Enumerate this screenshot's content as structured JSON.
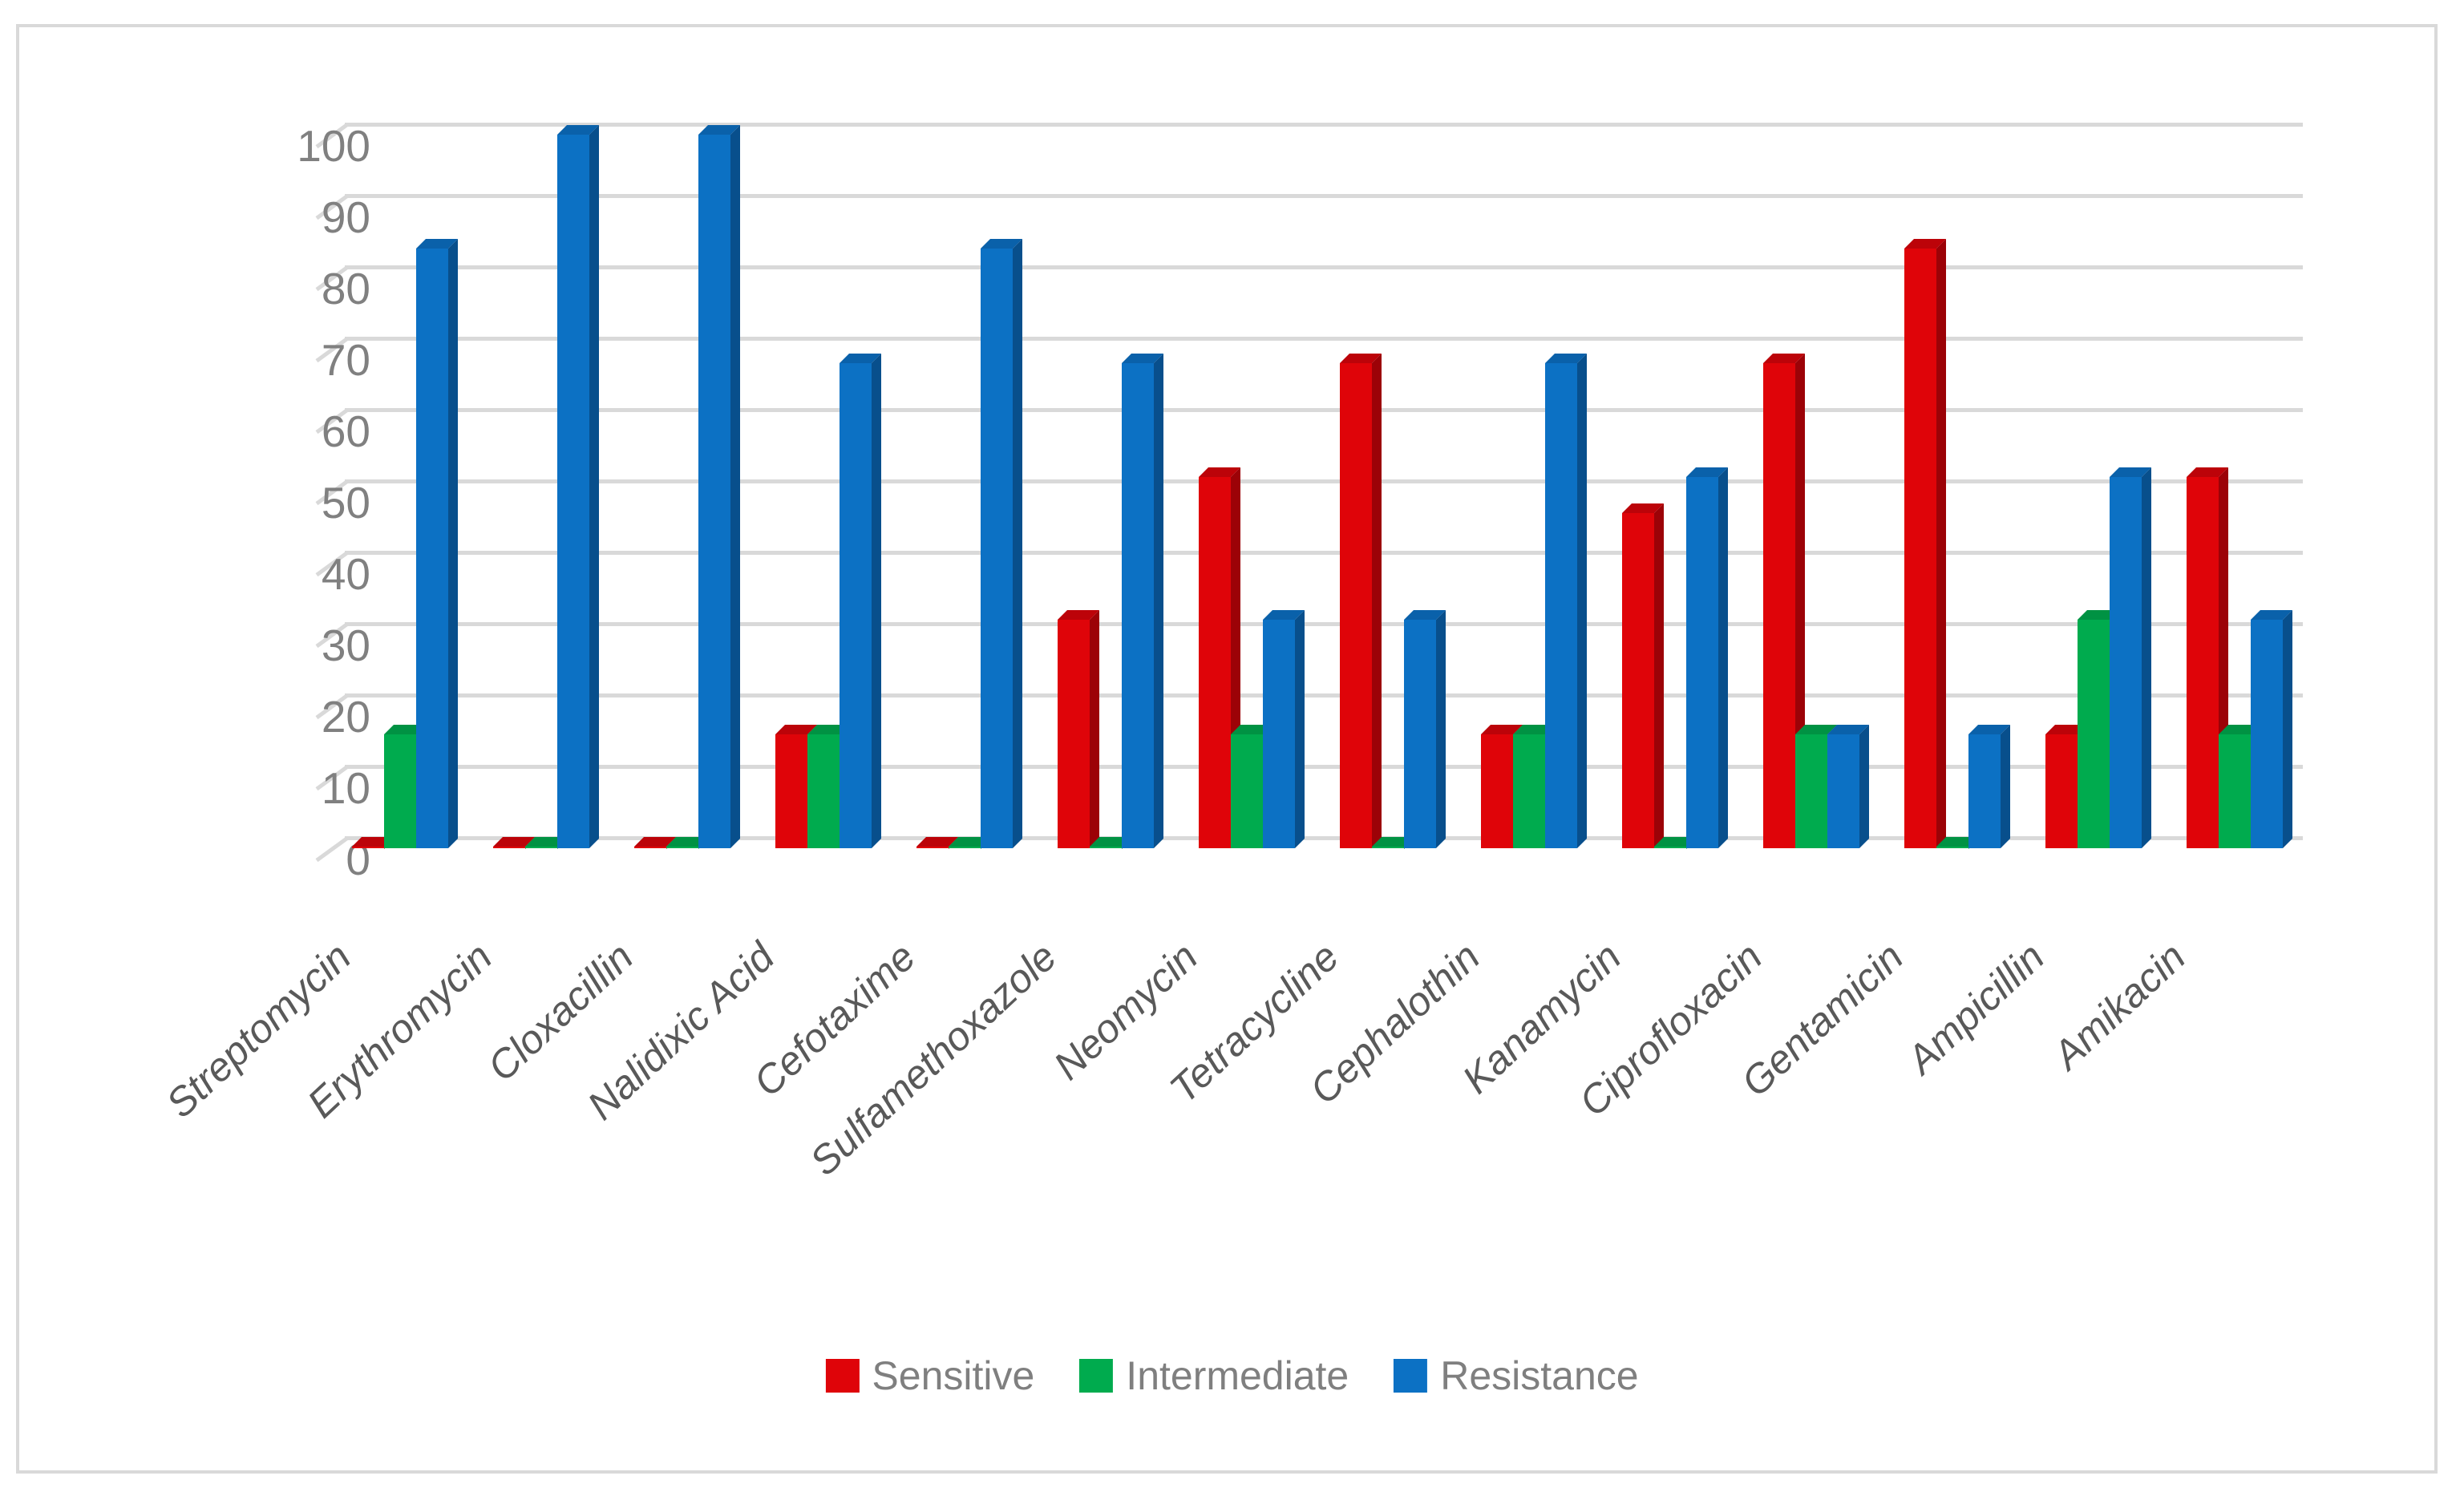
{
  "figure": {
    "background": "#ffffff",
    "border_color": "#d9d9d9"
  },
  "chart_data": {
    "type": "bar",
    "style": "3d-clustered-column",
    "title": "",
    "xlabel": "",
    "ylabel": "",
    "ylim": [
      0,
      100
    ],
    "ytick_step": 10,
    "yticks": [
      0,
      10,
      20,
      30,
      40,
      50,
      60,
      70,
      80,
      90,
      100
    ],
    "grid": true,
    "gridline_color": "#d9d9d9",
    "axis_text_color": "#808080",
    "category_text_color": "#595959",
    "legend_position": "bottom",
    "categories": [
      "Streptomycin",
      "Erythromycin",
      "Cloxacillin",
      "Nalidixic Acid",
      "Cefotaxime",
      "Sulfamethoxazole",
      "Neomycin",
      "Tetracycline",
      "Cephalothin",
      "Kanamycin",
      "Ciprofloxacin",
      "Gentamicin",
      "Ampicillin",
      "Amikacin"
    ],
    "series": [
      {
        "name": "Sensitive",
        "color": "#df0409",
        "color_side": "#9c0207",
        "color_top": "#bc0309",
        "values": [
          0,
          0,
          0,
          16,
          0,
          32,
          52,
          68,
          16,
          47,
          68,
          84,
          16,
          52
        ]
      },
      {
        "name": "Intermediate",
        "color": "#00ab4e",
        "color_side": "#007d37",
        "color_top": "#009243",
        "values": [
          16,
          0,
          0,
          16,
          0,
          0,
          16,
          0,
          16,
          0,
          16,
          0,
          32,
          16
        ]
      },
      {
        "name": "Resistance",
        "color": "#0c71c4",
        "color_side": "#084f8c",
        "color_top": "#0a61aa",
        "values": [
          84,
          100,
          100,
          68,
          84,
          68,
          32,
          32,
          68,
          52,
          16,
          16,
          52,
          32
        ]
      }
    ]
  }
}
